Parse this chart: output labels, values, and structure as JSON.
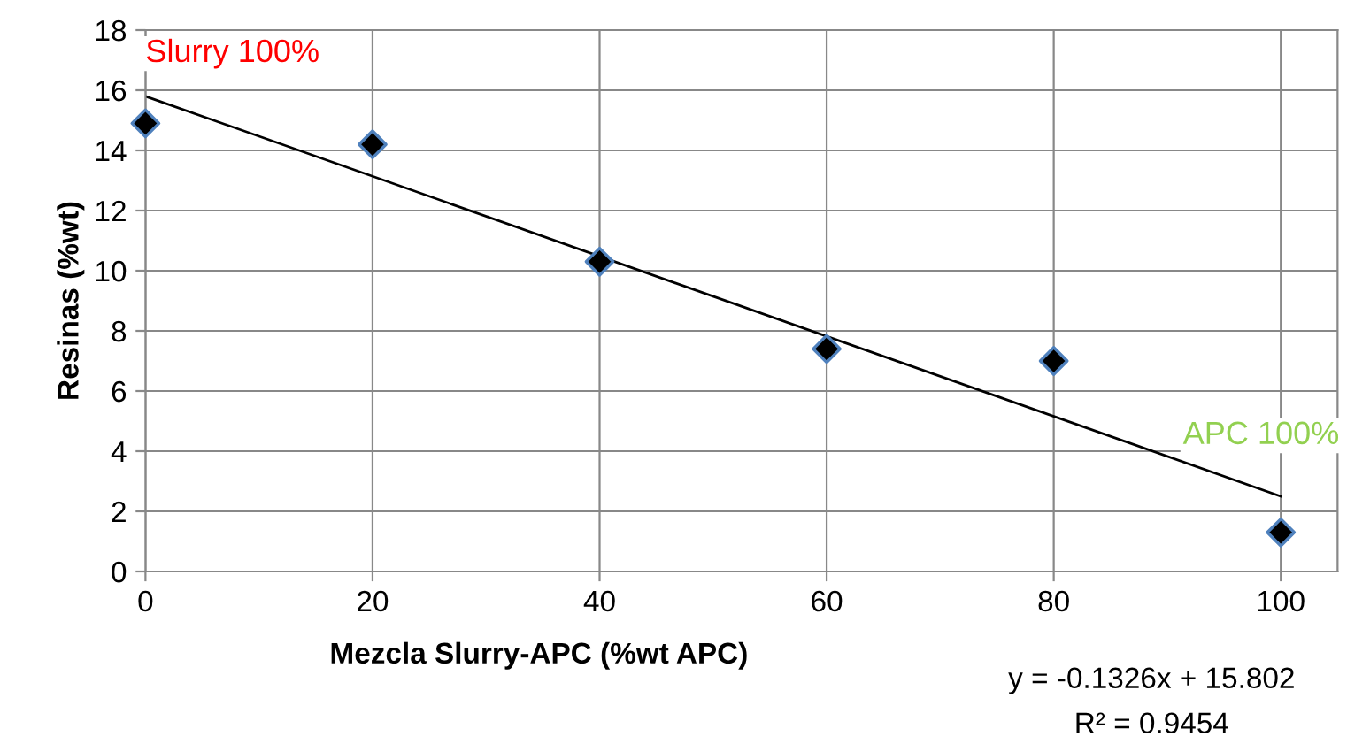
{
  "chart_data": {
    "type": "scatter",
    "xlabel": "Mezcla Slurry-APC (%wt APC)",
    "ylabel": "Resinas (%wt)",
    "series": [
      {
        "color": "#000000",
        "x": [
          0,
          20,
          40,
          60,
          80,
          100
        ],
        "values": [
          14.9,
          14.2,
          10.3,
          7.4,
          7.0,
          1.3
        ],
        "marker": "diamond"
      },
      {
        "type": "line",
        "color": "#000000",
        "x": [
          0,
          100
        ],
        "values": [
          15.8,
          2.5
        ],
        "marker": "none"
      }
    ],
    "xlim": [
      0,
      105
    ],
    "xticks": [
      0,
      20,
      40,
      60,
      80,
      100
    ],
    "ylim": [
      0,
      18
    ],
    "yticks": [
      0,
      2,
      4,
      6,
      8,
      10,
      12,
      14,
      16,
      18
    ],
    "grid": true,
    "annotations": [
      {
        "text": "Slurry 100%",
        "x": 0,
        "y": 14.9
      },
      {
        "text": "APC 100%",
        "x": 100,
        "y": 1.3
      },
      "y = -0.1326x + 15.802",
      "R² = 0.9454"
    ]
  }
}
